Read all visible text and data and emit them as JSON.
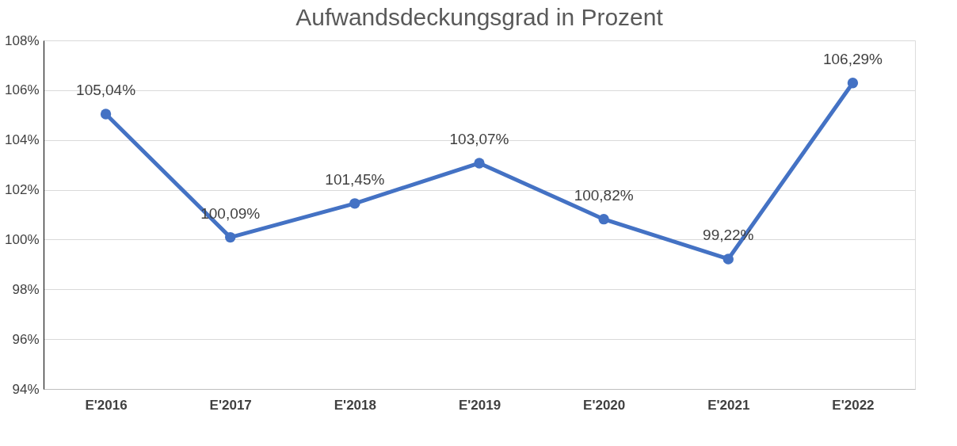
{
  "chart_data": {
    "type": "line",
    "title": "Aufwandsdeckungsgrad in Prozent",
    "categories": [
      "E'2016",
      "E'2017",
      "E'2018",
      "E'2019",
      "E'2020",
      "E'2021",
      "E'2022"
    ],
    "series": [
      {
        "color": "#4472c4",
        "values": [
          105.04,
          100.09,
          101.45,
          103.07,
          100.82,
          99.22,
          106.29
        ],
        "value_labels": [
          "105,04%",
          "100,09%",
          "101,45%",
          "103,07%",
          "100,82%",
          "99,22%",
          "106,29%"
        ]
      }
    ],
    "ylim": [
      94,
      108
    ],
    "yticks": [
      {
        "value": 94,
        "label": "94%"
      },
      {
        "value": 96,
        "label": "96%"
      },
      {
        "value": 98,
        "label": "98%"
      },
      {
        "value": 100,
        "label": "100%"
      },
      {
        "value": 102,
        "label": "102%"
      },
      {
        "value": 104,
        "label": "104%"
      },
      {
        "value": 106,
        "label": "106%"
      },
      {
        "value": 108,
        "label": "108%"
      }
    ],
    "grid": "y",
    "marker": "circle",
    "line_style": "solid"
  }
}
